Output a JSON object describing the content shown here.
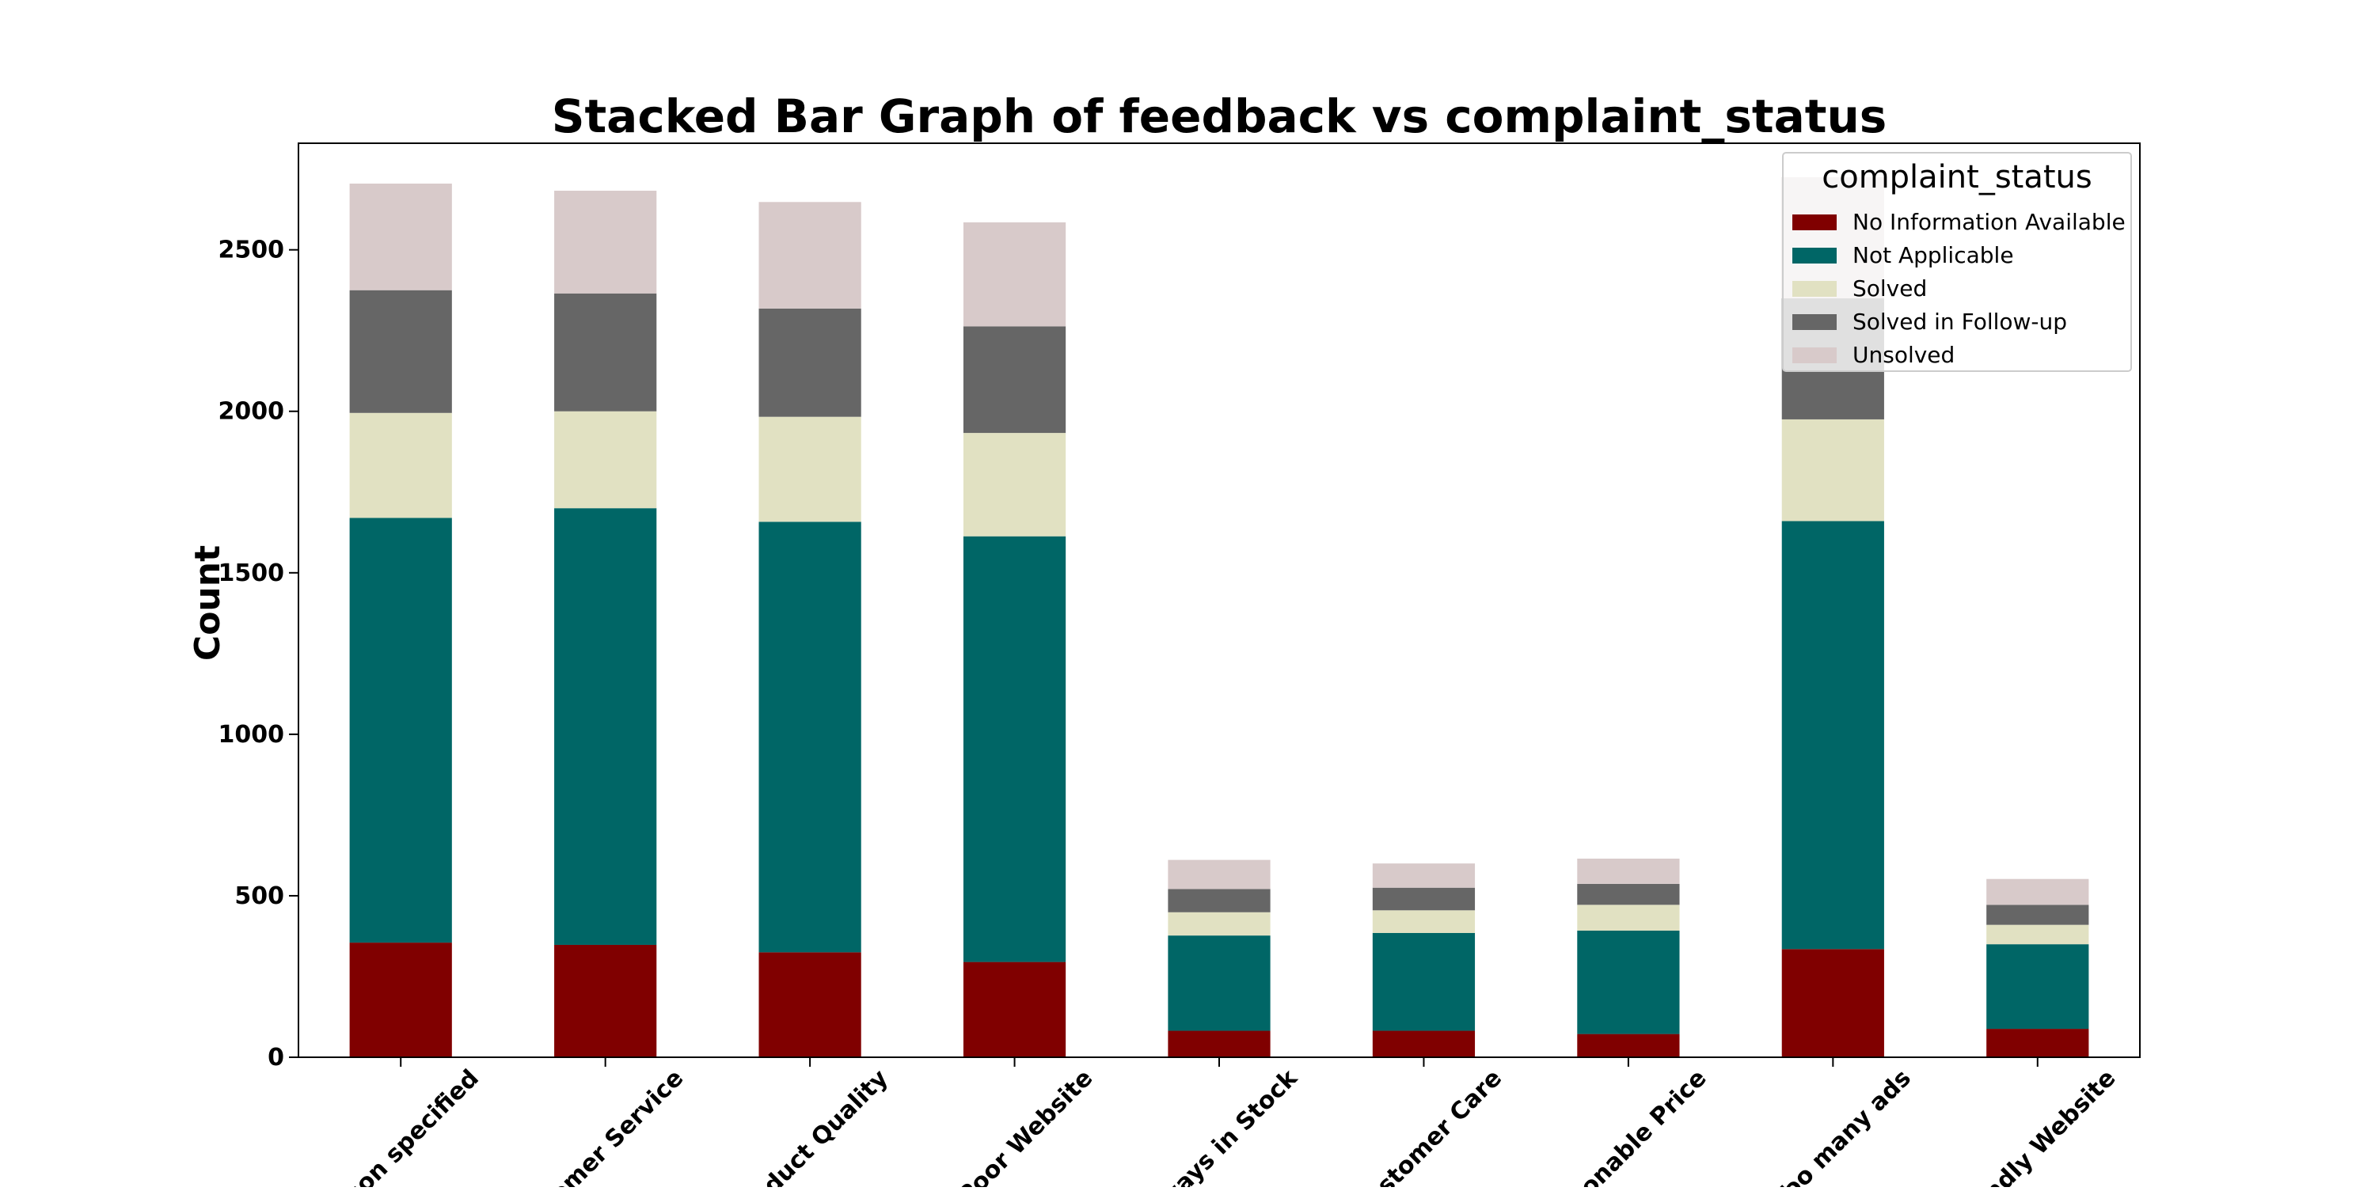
{
  "chart_data": {
    "type": "bar",
    "stacked": true,
    "title": "Stacked Bar Graph of feedback vs complaint_status",
    "xlabel": "",
    "ylabel": "Count",
    "ylim": [
      0,
      2830
    ],
    "yticks": [
      0,
      500,
      1000,
      1500,
      2000,
      2500
    ],
    "grid": false,
    "legend": {
      "title": "complaint_status",
      "position": "top-right"
    },
    "categories": [
      "son specified",
      "tomer Service",
      "oduct Quality",
      "Poor Website",
      "ways in Stock",
      "ustomer Care",
      "sonable Price",
      "Too many ads",
      "ndly Website"
    ],
    "series": [
      {
        "name": "No Information Available",
        "color": "#800000",
        "values": [
          355,
          348,
          325,
          295,
          82,
          82,
          72,
          335,
          88
        ]
      },
      {
        "name": "Not Applicable",
        "color": "#006666",
        "values": [
          1315,
          1352,
          1333,
          1318,
          295,
          303,
          320,
          1325,
          262
        ]
      },
      {
        "name": "Solved",
        "color": "#e1e1c2",
        "values": [
          325,
          300,
          325,
          320,
          72,
          70,
          80,
          315,
          60
        ]
      },
      {
        "name": "Solved in Follow-up",
        "color": "#666666",
        "values": [
          380,
          365,
          335,
          330,
          72,
          70,
          65,
          375,
          62
        ]
      },
      {
        "name": "Unsolved",
        "color": "#d8caca",
        "values": [
          330,
          318,
          330,
          322,
          90,
          75,
          78,
          375,
          80
        ]
      }
    ]
  }
}
